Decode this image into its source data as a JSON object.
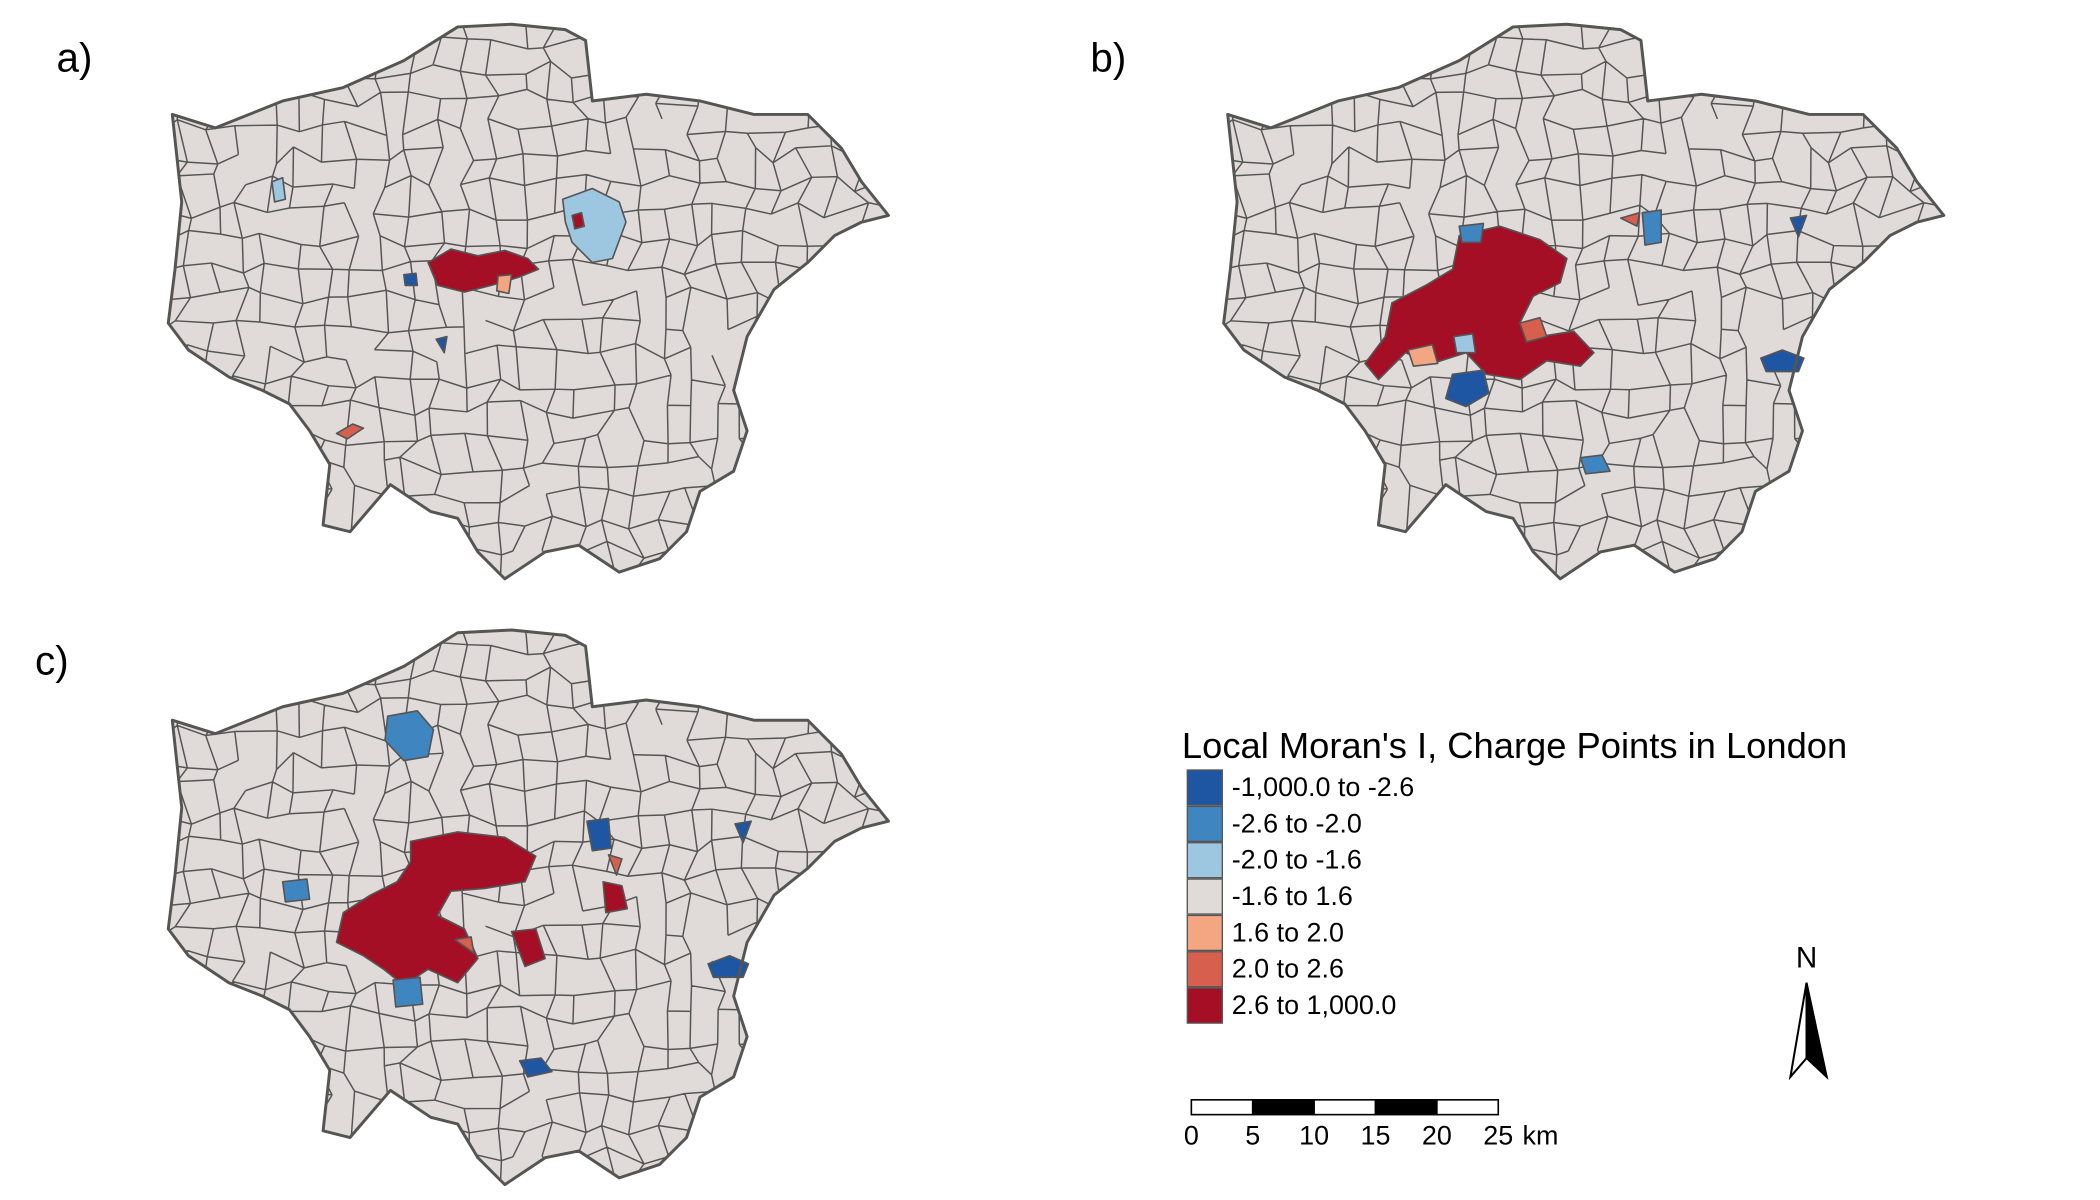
{
  "panels": [
    {
      "label": "a)"
    },
    {
      "label": "b)"
    },
    {
      "label": "c)"
    }
  ],
  "legend": {
    "title": "Local Moran's I, Charge Points in London",
    "classes": [
      {
        "label": "-1,000.0 to -2.6",
        "color": "#1f56a3"
      },
      {
        "label": "-2.6 to -2.0",
        "color": "#3f86c0"
      },
      {
        "label": "-2.0 to -1.6",
        "color": "#9dc6e0"
      },
      {
        "label": "-1.6 to 1.6",
        "color": "#e0dbd8"
      },
      {
        "label": "1.6 to 2.0",
        "color": "#f4a582"
      },
      {
        "label": "2.0 to 2.6",
        "color": "#d6604d"
      },
      {
        "label": "2.6 to 1,000.0",
        "color": "#a50f26"
      }
    ]
  },
  "scale_bar": {
    "ticks": [
      0,
      5,
      10,
      15,
      20,
      25
    ],
    "unit": "km"
  },
  "north_arrow": {
    "label": "N"
  }
}
